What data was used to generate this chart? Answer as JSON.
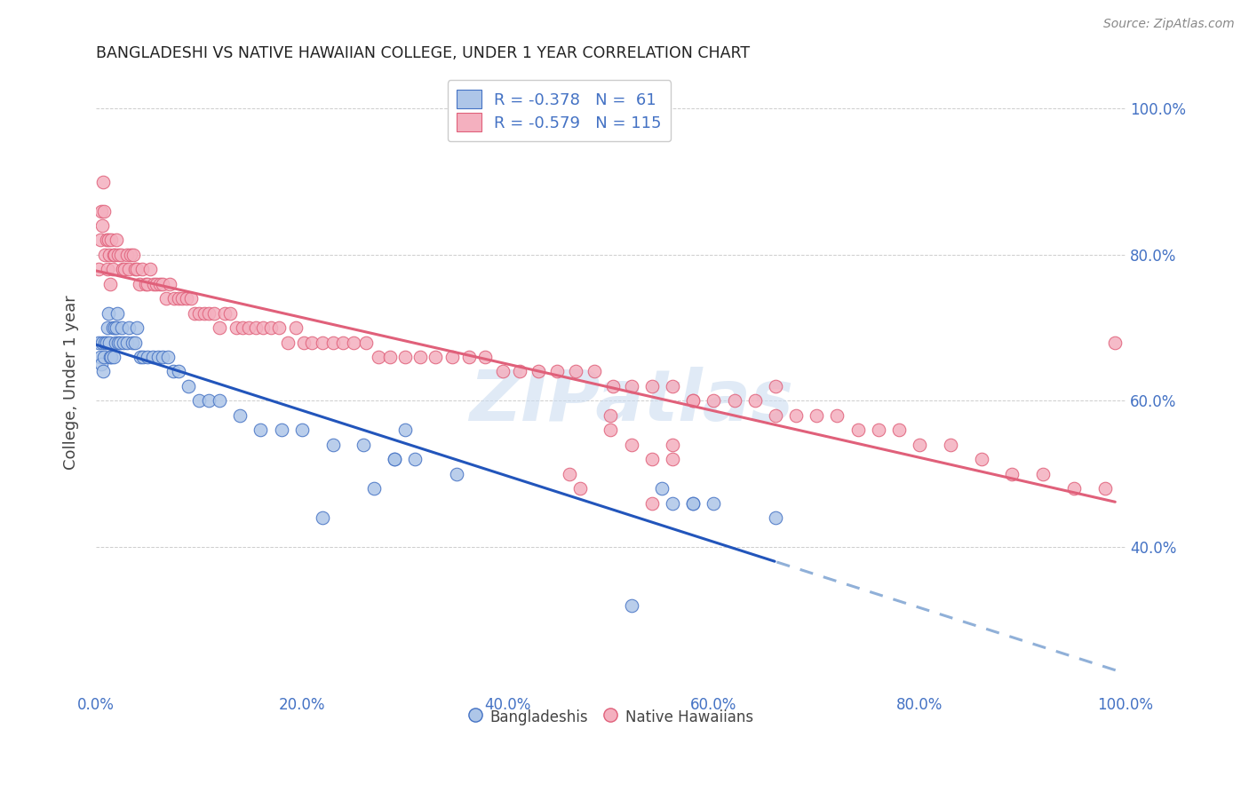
{
  "title": "BANGLADESHI VS NATIVE HAWAIIAN COLLEGE, UNDER 1 YEAR CORRELATION CHART",
  "source": "Source: ZipAtlas.com",
  "ylabel": "College, Under 1 year",
  "watermark": "ZIPatlas",
  "legend_r_blue": "-0.378",
  "legend_n_blue": "61",
  "legend_r_pink": "-0.579",
  "legend_n_pink": "115",
  "blue_face_color": "#aec6e8",
  "pink_face_color": "#f4b0bf",
  "blue_edge_color": "#4472c4",
  "pink_edge_color": "#e0607a",
  "blue_line_color": "#2255bb",
  "pink_line_color": "#e0607a",
  "dashed_color": "#90b0d8",
  "grid_color": "#c8c8c8",
  "axis_label_color": "#4472c4",
  "title_color": "#222222",
  "source_color": "#888888",
  "watermark_color": "#ccddf0",
  "bg_color": "#ffffff",
  "xlim": [
    0.0,
    1.0
  ],
  "ylim": [
    0.2,
    1.05
  ],
  "xticks": [
    0.0,
    0.2,
    0.4,
    0.6,
    0.8,
    1.0
  ],
  "xtick_labels": [
    "0.0%",
    "20.0%",
    "40.0%",
    "60.0%",
    "80.0%",
    "100.0%"
  ],
  "yticks": [
    0.4,
    0.6,
    0.8,
    1.0
  ],
  "ytick_labels": [
    "40.0%",
    "60.0%",
    "80.0%",
    "100.0%"
  ],
  "blue_x": [
    0.003,
    0.004,
    0.005,
    0.006,
    0.007,
    0.008,
    0.009,
    0.01,
    0.011,
    0.012,
    0.013,
    0.014,
    0.015,
    0.016,
    0.017,
    0.018,
    0.019,
    0.02,
    0.021,
    0.022,
    0.023,
    0.025,
    0.027,
    0.03,
    0.032,
    0.035,
    0.038,
    0.04,
    0.043,
    0.046,
    0.05,
    0.055,
    0.06,
    0.065,
    0.07,
    0.075,
    0.08,
    0.09,
    0.1,
    0.11,
    0.12,
    0.14,
    0.16,
    0.18,
    0.2,
    0.23,
    0.26,
    0.29,
    0.31,
    0.35,
    0.3,
    0.29,
    0.58,
    0.55,
    0.27,
    0.6,
    0.22,
    0.58,
    0.66,
    0.56,
    0.52
  ],
  "blue_y": [
    0.68,
    0.66,
    0.65,
    0.68,
    0.64,
    0.66,
    0.68,
    0.68,
    0.7,
    0.72,
    0.68,
    0.66,
    0.66,
    0.7,
    0.66,
    0.7,
    0.68,
    0.7,
    0.72,
    0.68,
    0.68,
    0.7,
    0.68,
    0.68,
    0.7,
    0.68,
    0.68,
    0.7,
    0.66,
    0.66,
    0.66,
    0.66,
    0.66,
    0.66,
    0.66,
    0.64,
    0.64,
    0.62,
    0.6,
    0.6,
    0.6,
    0.58,
    0.56,
    0.56,
    0.56,
    0.54,
    0.54,
    0.52,
    0.52,
    0.5,
    0.56,
    0.52,
    0.46,
    0.48,
    0.48,
    0.46,
    0.44,
    0.46,
    0.44,
    0.46,
    0.32
  ],
  "pink_x": [
    0.003,
    0.004,
    0.005,
    0.006,
    0.007,
    0.008,
    0.009,
    0.01,
    0.011,
    0.012,
    0.013,
    0.014,
    0.015,
    0.016,
    0.017,
    0.018,
    0.02,
    0.022,
    0.024,
    0.026,
    0.028,
    0.03,
    0.032,
    0.034,
    0.036,
    0.038,
    0.04,
    0.042,
    0.045,
    0.048,
    0.05,
    0.053,
    0.056,
    0.059,
    0.062,
    0.065,
    0.068,
    0.072,
    0.076,
    0.08,
    0.084,
    0.088,
    0.092,
    0.096,
    0.1,
    0.105,
    0.11,
    0.115,
    0.12,
    0.125,
    0.13,
    0.136,
    0.142,
    0.148,
    0.155,
    0.162,
    0.17,
    0.178,
    0.186,
    0.194,
    0.202,
    0.21,
    0.22,
    0.23,
    0.24,
    0.25,
    0.262,
    0.274,
    0.286,
    0.3,
    0.315,
    0.33,
    0.346,
    0.362,
    0.378,
    0.395,
    0.412,
    0.43,
    0.448,
    0.466,
    0.484,
    0.502,
    0.52,
    0.54,
    0.56,
    0.58,
    0.6,
    0.62,
    0.64,
    0.66,
    0.68,
    0.7,
    0.72,
    0.74,
    0.76,
    0.78,
    0.8,
    0.83,
    0.86,
    0.89,
    0.92,
    0.95,
    0.98,
    0.99,
    0.66,
    0.58,
    0.56,
    0.5,
    0.46,
    0.5,
    0.52,
    0.54,
    0.47,
    0.56,
    0.54
  ],
  "pink_y": [
    0.78,
    0.82,
    0.86,
    0.84,
    0.9,
    0.86,
    0.8,
    0.82,
    0.78,
    0.82,
    0.8,
    0.76,
    0.82,
    0.78,
    0.8,
    0.8,
    0.82,
    0.8,
    0.8,
    0.78,
    0.78,
    0.8,
    0.78,
    0.8,
    0.8,
    0.78,
    0.78,
    0.76,
    0.78,
    0.76,
    0.76,
    0.78,
    0.76,
    0.76,
    0.76,
    0.76,
    0.74,
    0.76,
    0.74,
    0.74,
    0.74,
    0.74,
    0.74,
    0.72,
    0.72,
    0.72,
    0.72,
    0.72,
    0.7,
    0.72,
    0.72,
    0.7,
    0.7,
    0.7,
    0.7,
    0.7,
    0.7,
    0.7,
    0.68,
    0.7,
    0.68,
    0.68,
    0.68,
    0.68,
    0.68,
    0.68,
    0.68,
    0.66,
    0.66,
    0.66,
    0.66,
    0.66,
    0.66,
    0.66,
    0.66,
    0.64,
    0.64,
    0.64,
    0.64,
    0.64,
    0.64,
    0.62,
    0.62,
    0.62,
    0.62,
    0.6,
    0.6,
    0.6,
    0.6,
    0.58,
    0.58,
    0.58,
    0.58,
    0.56,
    0.56,
    0.56,
    0.54,
    0.54,
    0.52,
    0.5,
    0.5,
    0.48,
    0.48,
    0.68,
    0.62,
    0.6,
    0.54,
    0.58,
    0.5,
    0.56,
    0.54,
    0.52,
    0.48,
    0.52,
    0.46
  ]
}
